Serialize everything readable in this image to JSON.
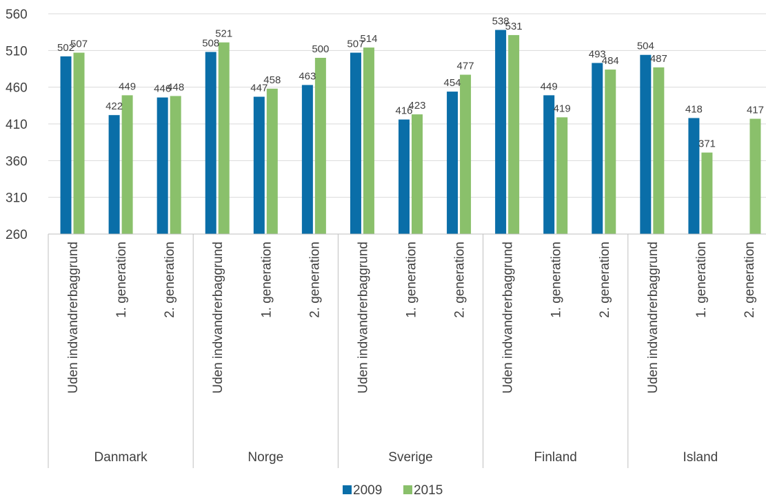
{
  "chart_data": {
    "type": "bar",
    "groups": [
      "Danmark",
      "Norge",
      "Sverige",
      "Finland",
      "Island"
    ],
    "subcategories": [
      "Uden indvandrerbaggrund",
      "1. generation",
      "2. generation"
    ],
    "series": [
      {
        "name": "2009",
        "color": "#0a6ea8",
        "values": [
          502,
          422,
          446,
          508,
          447,
          463,
          507,
          416,
          454,
          538,
          449,
          493,
          504,
          418,
          null
        ]
      },
      {
        "name": "2015",
        "color": "#8ac06b",
        "values": [
          507,
          449,
          448,
          521,
          458,
          500,
          514,
          423,
          477,
          531,
          419,
          484,
          487,
          371,
          417
        ]
      }
    ],
    "yticks": [
      260,
      310,
      360,
      410,
      460,
      510,
      560
    ],
    "ylim": [
      260,
      560
    ],
    "grid": true,
    "legend_position": "bottom"
  }
}
